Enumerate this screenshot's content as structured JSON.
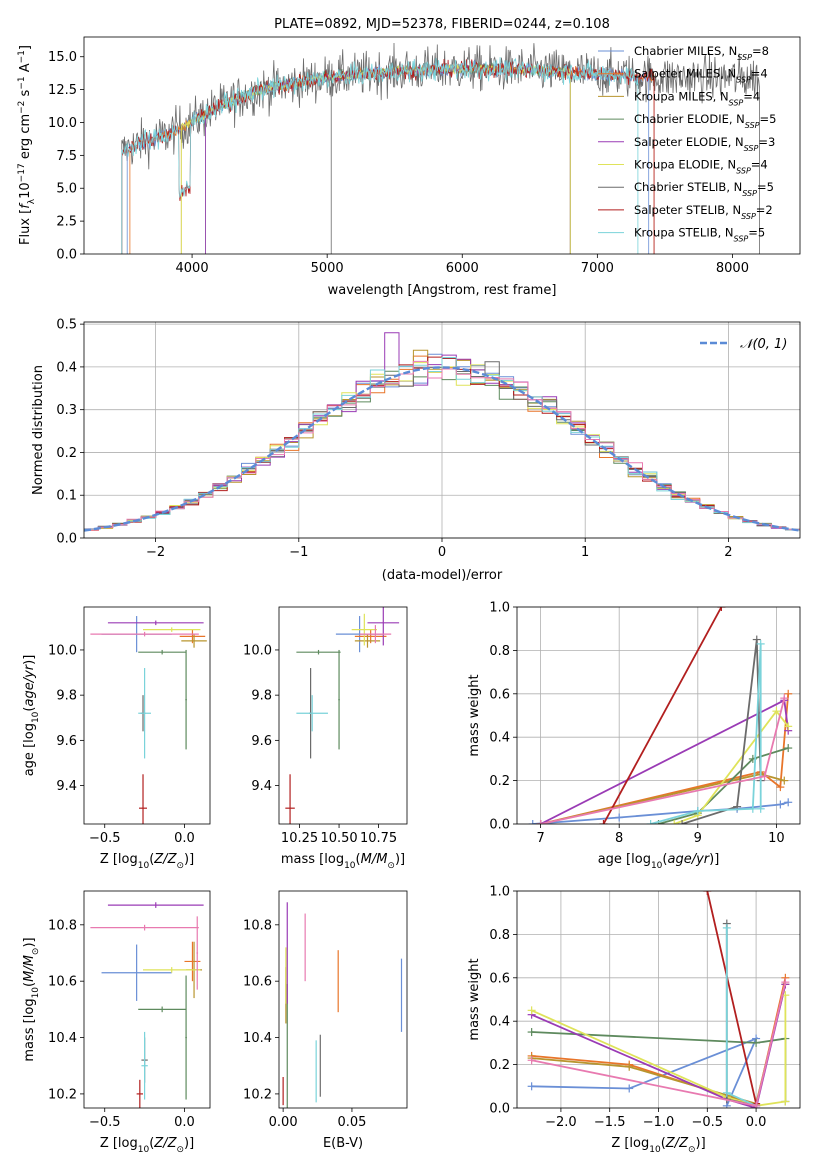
{
  "colors": {
    "chabrier_miles": "#6a8fd6",
    "salpeter_miles": "#e8752a",
    "kroupa_miles": "#b8952e",
    "chabrier_elodie": "#5e8a5e",
    "salpeter_elodie": "#9a3bb5",
    "kroupa_elodie": "#dfe35a",
    "chabrier_stelib": "#6b6b6b",
    "salpeter_stelib": "#b21f1f",
    "kroupa_stelib": "#7ad3da",
    "pink": "#e87ab0",
    "normal": "#5b8bd6"
  },
  "chart_data": [
    {
      "id": "spectrum",
      "type": "line",
      "title": "PLATE=0892, MJD=52378, FIBERID=0244, z=0.108",
      "xlabel": "wavelength [Angstrom, rest frame]",
      "ylabel": "Flux [f_λ 10^-17 erg cm^-2 s^-1 A^-1]",
      "xlim": [
        3200,
        8500
      ],
      "ylim": [
        0,
        16.5
      ],
      "xticks": [
        4000,
        5000,
        6000,
        7000,
        8000
      ],
      "yticks": [
        0.0,
        2.5,
        5.0,
        7.5,
        10.0,
        12.5,
        15.0
      ],
      "grid": false,
      "legend_position": "right",
      "series": [
        {
          "name": "Chabrier MILES, N_SSP=8",
          "key": "chabrier_miles"
        },
        {
          "name": "Salpeter MILES, N_SSP=4",
          "key": "salpeter_miles"
        },
        {
          "name": "Kroupa MILES, N_SSP=4",
          "key": "kroupa_miles"
        },
        {
          "name": "Chabrier ELODIE, N_SSP=5",
          "key": "chabrier_elodie"
        },
        {
          "name": "Salpeter ELODIE, N_SSP=3",
          "key": "salpeter_elodie"
        },
        {
          "name": "Kroupa ELODIE, N_SSP=4",
          "key": "kroupa_elodie"
        },
        {
          "name": "Chabrier STELIB, N_SSP=5",
          "key": "chabrier_stelib"
        },
        {
          "name": "Salpeter STELIB, N_SSP=2",
          "key": "salpeter_stelib"
        },
        {
          "name": "Kroupa STELIB, N_SSP=5",
          "key": "kroupa_stelib"
        }
      ],
      "continuum_points": [
        [
          3480,
          7.8
        ],
        [
          3600,
          8.4
        ],
        [
          3800,
          9.0
        ],
        [
          3950,
          9.8
        ],
        [
          4200,
          11.2
        ],
        [
          4500,
          12.5
        ],
        [
          5000,
          13.4
        ],
        [
          5500,
          13.9
        ],
        [
          6000,
          14.1
        ],
        [
          6500,
          14.0
        ],
        [
          7000,
          13.7
        ],
        [
          7500,
          13.4
        ]
      ]
    },
    {
      "id": "residuals",
      "type": "line",
      "xlabel": "(data-model)/error",
      "ylabel": "Normed distribution",
      "xlim": [
        -2.5,
        2.5
      ],
      "ylim": [
        0,
        0.505
      ],
      "xticks": [
        -2,
        -1,
        0,
        1,
        2
      ],
      "yticks": [
        0.0,
        0.1,
        0.2,
        0.3,
        0.4,
        0.5
      ],
      "grid": true,
      "legend": "N(0,1)",
      "legend_position": "top-right"
    },
    {
      "id": "age_vs_Z",
      "type": "scatter",
      "xlabel": "Z [log10(Z/Z⊙)]",
      "ylabel": "age  [log10(age/yr)]",
      "xlim": [
        -0.63,
        0.16
      ],
      "ylim": [
        9.23,
        10.19
      ],
      "xticks": [
        -0.5,
        0.0
      ],
      "yticks": [
        9.4,
        9.6,
        9.8,
        10.0
      ],
      "points": [
        {
          "key": "chabrier_miles",
          "x": -0.3,
          "xerr": 0.22,
          "y": 10.07,
          "yerr": 0.08
        },
        {
          "key": "salpeter_miles",
          "x": 0.05,
          "xerr": 0.08,
          "y": 10.06,
          "yerr": 0.03
        },
        {
          "key": "kroupa_miles",
          "x": 0.06,
          "xerr": 0.08,
          "y": 10.04,
          "yerr": 0.03
        },
        {
          "key": "chabrier_elodie",
          "x": -0.14,
          "xerr": 0.15,
          "y": 9.99,
          "yerr": 0.01
        },
        {
          "key": "chabrier_elodie",
          "x": 0.01,
          "xerr": 0.005,
          "y": 9.78,
          "yerr": 0.22
        },
        {
          "key": "salpeter_elodie",
          "x": -0.18,
          "xerr": 0.3,
          "y": 10.12,
          "yerr": 0.01
        },
        {
          "key": "kroupa_elodie",
          "x": -0.08,
          "xerr": 0.18,
          "y": 10.09,
          "yerr": 0.01
        },
        {
          "key": "chabrier_stelib",
          "x": -0.26,
          "xerr": 0.015,
          "y": 9.72,
          "yerr": 0.08
        },
        {
          "key": "salpeter_stelib",
          "x": -0.26,
          "xerr": 0.025,
          "y": 9.3,
          "yerr": 0.15
        },
        {
          "key": "kroupa_stelib",
          "x": -0.25,
          "xerr": 0.04,
          "y": 9.72,
          "yerr": 0.2
        },
        {
          "key": "pink",
          "x": -0.25,
          "xerr": 0.34,
          "y": 10.07,
          "yerr": 0.01
        }
      ]
    },
    {
      "id": "age_vs_mass",
      "type": "scatter",
      "xlabel": "mass [log10(M/M⊙)]",
      "xlim": [
        10.12,
        10.93
      ],
      "ylim": [
        9.23,
        10.19
      ],
      "xticks": [
        10.25,
        10.5,
        10.75
      ],
      "yticks": [
        9.4,
        9.6,
        9.8,
        10.0
      ],
      "points": [
        {
          "key": "chabrier_miles",
          "x": 10.63,
          "xerr": 0.15,
          "y": 10.07,
          "yerr": 0.08
        },
        {
          "key": "salpeter_miles",
          "x": 10.7,
          "xerr": 0.1,
          "y": 10.06,
          "yerr": 0.03
        },
        {
          "key": "kroupa_miles",
          "x": 10.68,
          "xerr": 0.08,
          "y": 10.04,
          "yerr": 0.03
        },
        {
          "key": "chabrier_elodie",
          "x": 10.5,
          "xerr": 0.005,
          "y": 9.78,
          "yerr": 0.22
        },
        {
          "key": "chabrier_elodie",
          "x": 10.37,
          "xerr": 0.14,
          "y": 9.99,
          "yerr": 0.01
        },
        {
          "key": "salpeter_elodie",
          "x": 10.78,
          "xerr": 0.1,
          "y": 10.12,
          "yerr": 0.1
        },
        {
          "key": "kroupa_elodie",
          "x": 10.66,
          "xerr": 0.08,
          "y": 10.09,
          "yerr": 0.07
        },
        {
          "key": "chabrier_stelib",
          "x": 10.32,
          "xerr": 0.01,
          "y": 9.72,
          "yerr": 0.2
        },
        {
          "key": "salpeter_stelib",
          "x": 10.19,
          "xerr": 0.03,
          "y": 9.3,
          "yerr": 0.15
        },
        {
          "key": "kroupa_stelib",
          "x": 10.33,
          "xerr": 0.1,
          "y": 9.72,
          "yerr": 0.08
        },
        {
          "key": "pink",
          "x": 10.73,
          "xerr": 0.1,
          "y": 10.07,
          "yerr": 0.04
        }
      ]
    },
    {
      "id": "massweight_vs_age",
      "type": "line",
      "xlabel": "age  [log10(age/yr)]",
      "ylabel": "mass weight",
      "xlim": [
        6.7,
        10.3
      ],
      "ylim": [
        0,
        1.0
      ],
      "xticks": [
        7,
        8,
        9,
        10
      ],
      "yticks": [
        0.0,
        0.2,
        0.4,
        0.6,
        0.8,
        1.0
      ],
      "grid": true,
      "series": [
        {
          "key": "chabrier_miles",
          "x": [
            6.9,
            8.0,
            9.0,
            9.5,
            10.05,
            10.15
          ],
          "y": [
            0.0,
            0.03,
            0.06,
            0.07,
            0.09,
            0.1
          ]
        },
        {
          "key": "salpeter_miles",
          "x": [
            7.0,
            9.8,
            10.05,
            10.15
          ],
          "y": [
            0.0,
            0.24,
            0.17,
            0.6
          ]
        },
        {
          "key": "kroupa_miles",
          "x": [
            7.0,
            9.8,
            10.1
          ],
          "y": [
            0.0,
            0.23,
            0.2
          ]
        },
        {
          "key": "chabrier_elodie",
          "x": [
            8.5,
            9.0,
            9.7,
            10.15
          ],
          "y": [
            0.0,
            0.05,
            0.3,
            0.35
          ]
        },
        {
          "key": "salpeter_elodie",
          "x": [
            7.0,
            10.1,
            10.15
          ],
          "y": [
            0.0,
            0.57,
            0.43
          ]
        },
        {
          "key": "kroupa_elodie",
          "x": [
            8.7,
            9.0,
            10.0,
            10.15
          ],
          "y": [
            0.0,
            0.04,
            0.52,
            0.45
          ]
        },
        {
          "key": "chabrier_stelib",
          "x": [
            8.8,
            9.5,
            9.75,
            9.8
          ],
          "y": [
            0.0,
            0.08,
            0.85,
            0.2
          ]
        },
        {
          "key": "salpeter_stelib",
          "x": [
            7.8,
            9.3
          ],
          "y": [
            0.0,
            1.0
          ]
        },
        {
          "key": "kroupa_stelib",
          "x": [
            8.4,
            9.0,
            9.7,
            9.8,
            9.8
          ],
          "y": [
            0.0,
            0.06,
            0.07,
            0.83,
            0.07
          ]
        },
        {
          "key": "pink",
          "x": [
            7.0,
            9.85,
            10.1
          ],
          "y": [
            0.0,
            0.22,
            0.58
          ]
        }
      ]
    },
    {
      "id": "mass_vs_Z",
      "type": "scatter",
      "xlabel": "Z [log10(Z/Z⊙)]",
      "ylabel": "mass [log10(M/M⊙)]",
      "xlim": [
        -0.63,
        0.16
      ],
      "ylim": [
        10.15,
        10.92
      ],
      "xticks": [
        -0.5,
        0.0
      ],
      "yticks": [
        10.2,
        10.4,
        10.6,
        10.8
      ],
      "points": [
        {
          "key": "chabrier_miles",
          "x": -0.3,
          "xerr": 0.22,
          "y": 10.63,
          "yerr": 0.1
        },
        {
          "key": "salpeter_miles",
          "x": 0.05,
          "xerr": 0.05,
          "y": 10.67,
          "yerr": 0.07
        },
        {
          "key": "kroupa_miles",
          "x": 0.06,
          "xerr": 0.05,
          "y": 10.64,
          "yerr": 0.1
        },
        {
          "key": "chabrier_elodie",
          "x": -0.14,
          "xerr": 0.15,
          "y": 10.5,
          "yerr": 0.01
        },
        {
          "key": "chabrier_elodie",
          "x": 0.01,
          "xerr": 0.005,
          "y": 10.4,
          "yerr": 0.22
        },
        {
          "key": "salpeter_elodie",
          "x": -0.18,
          "xerr": 0.3,
          "y": 10.87,
          "yerr": 0.01
        },
        {
          "key": "kroupa_elodie",
          "x": -0.08,
          "xerr": 0.18,
          "y": 10.64,
          "yerr": 0.01
        },
        {
          "key": "chabrier_stelib",
          "x": -0.25,
          "xerr": 0.02,
          "y": 10.32,
          "yerr": 0.08
        },
        {
          "key": "salpeter_stelib",
          "x": -0.28,
          "xerr": 0.02,
          "y": 10.2,
          "yerr": 0.05
        },
        {
          "key": "kroupa_stelib",
          "x": -0.25,
          "xerr": 0.02,
          "y": 10.3,
          "yerr": 0.12
        },
        {
          "key": "pink",
          "x": -0.25,
          "xerr": 0.34,
          "y": 10.79,
          "yerr": 0.01
        },
        {
          "key": "pink",
          "x": 0.08,
          "xerr": 0.005,
          "y": 10.7,
          "yerr": 0.13
        }
      ]
    },
    {
      "id": "mass_vs_ebv",
      "type": "scatter",
      "xlabel": "E(B-V)",
      "xlim": [
        -0.003,
        0.09
      ],
      "ylim": [
        10.15,
        10.92
      ],
      "xticks": [
        0.0,
        0.05
      ],
      "yticks": [
        10.2,
        10.4,
        10.6,
        10.8
      ],
      "points": [
        {
          "key": "chabrier_miles",
          "x": 0.086,
          "y": 10.55,
          "yerr": 0.13
        },
        {
          "key": "salpeter_miles",
          "x": 0.04,
          "y": 10.6,
          "yerr": 0.11
        },
        {
          "key": "kroupa_miles",
          "x": 0.002,
          "y": 10.55,
          "yerr": 0.1
        },
        {
          "key": "chabrier_elodie",
          "x": 0.003,
          "y": 10.37,
          "yerr": 0.22
        },
        {
          "key": "salpeter_elodie",
          "x": 0.003,
          "y": 10.7,
          "yerr": 0.18
        },
        {
          "key": "kroupa_elodie",
          "x": 0.002,
          "y": 10.62,
          "yerr": 0.1
        },
        {
          "key": "chabrier_stelib",
          "x": 0.027,
          "y": 10.3,
          "yerr": 0.11
        },
        {
          "key": "salpeter_stelib",
          "x": 0.0,
          "y": 10.21,
          "yerr": 0.05
        },
        {
          "key": "kroupa_stelib",
          "x": 0.024,
          "y": 10.28,
          "yerr": 0.11
        },
        {
          "key": "pink",
          "x": 0.016,
          "y": 10.72,
          "yerr": 0.12
        }
      ]
    },
    {
      "id": "massweight_vs_Z",
      "type": "line",
      "xlabel": "Z [log10(Z/Z⊙)]",
      "ylabel": "mass weight",
      "xlim": [
        -2.45,
        0.45
      ],
      "ylim": [
        0,
        1.0
      ],
      "xticks": [
        -2.0,
        -1.5,
        -1.0,
        -0.5,
        0.0
      ],
      "yticks": [
        0.0,
        0.2,
        0.4,
        0.6,
        0.8,
        1.0
      ],
      "grid": true,
      "series": [
        {
          "key": "chabrier_miles",
          "x": [
            -2.3,
            -1.3,
            0.0,
            -0.3
          ],
          "y": [
            0.1,
            0.09,
            0.32,
            0.01
          ]
        },
        {
          "key": "salpeter_miles",
          "x": [
            -2.3,
            -1.3,
            0.0,
            0.3
          ],
          "y": [
            0.24,
            0.2,
            0.01,
            0.6
          ]
        },
        {
          "key": "kroupa_miles",
          "x": [
            -2.3,
            -1.3,
            0.0,
            0.3
          ],
          "y": [
            0.23,
            0.19,
            0.02,
            0.57
          ]
        },
        {
          "key": "chabrier_elodie",
          "x": [
            -2.3,
            0.0,
            0.3,
            0.3
          ],
          "y": [
            0.35,
            0.3,
            0.32,
            0.03
          ]
        },
        {
          "key": "salpeter_elodie",
          "x": [
            -2.3,
            -0.3,
            0.0,
            0.3
          ],
          "y": [
            0.43,
            0.04,
            0.0,
            0.57
          ]
        },
        {
          "key": "kroupa_elodie",
          "x": [
            -2.3,
            -0.3,
            0.0,
            0.3,
            0.3
          ],
          "y": [
            0.45,
            0.05,
            0.01,
            0.03,
            0.52
          ]
        },
        {
          "key": "chabrier_stelib",
          "x": [
            -0.3,
            -0.3,
            0.0
          ],
          "y": [
            0.85,
            0.04,
            0.01
          ]
        },
        {
          "key": "salpeter_stelib",
          "x": [
            -0.5,
            0.0
          ],
          "y": [
            1.0,
            0.02
          ]
        },
        {
          "key": "kroupa_stelib",
          "x": [
            -0.3,
            -0.3,
            0.0
          ],
          "y": [
            0.83,
            0.07,
            0.01
          ]
        },
        {
          "key": "pink",
          "x": [
            -2.3,
            0.0,
            0.3
          ],
          "y": [
            0.22,
            0.01,
            0.58
          ]
        }
      ]
    }
  ]
}
